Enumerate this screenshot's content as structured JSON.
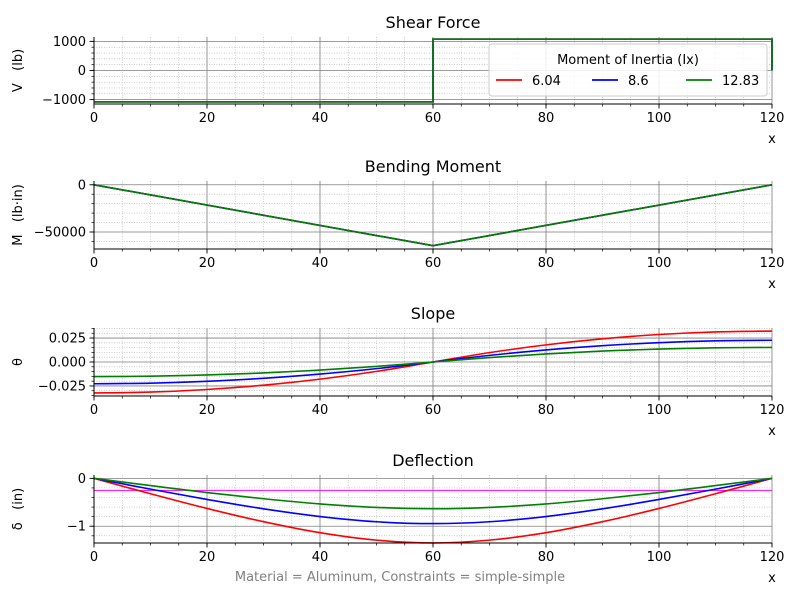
{
  "footer_text": "Material = Aluminum, Constraints = simple-simple",
  "legend": {
    "title": "Moment of Inertia (Ix)",
    "placement": "top-right (Shear Force panel)",
    "entries": [
      {
        "label": "6.04",
        "color": "#ff0000"
      },
      {
        "label": "8.6",
        "color": "#0000ff"
      },
      {
        "label": "12.83",
        "color": "#008000"
      }
    ]
  },
  "chart_data": [
    {
      "type": "line",
      "title": "Shear Force",
      "xlabel": "x",
      "ylabel": "V   (lb)",
      "xlim": [
        0,
        120
      ],
      "ylim": [
        -1150,
        1150
      ],
      "xticks": [
        0,
        20,
        40,
        60,
        80,
        100,
        120
      ],
      "xtick_labels": [
        "0",
        "20",
        "40",
        "60",
        "80",
        "100",
        "120"
      ],
      "yticks": [
        -1000,
        0,
        1000
      ],
      "ytick_labels": [
        "−1000",
        "0",
        "1000"
      ],
      "grid": true,
      "series": [
        {
          "name": "6.04",
          "color": "#ff0000",
          "x": [
            0,
            60,
            60,
            120,
            120
          ],
          "y": [
            -1075,
            -1075,
            1075,
            1075,
            0
          ]
        },
        {
          "name": "8.6",
          "color": "#0000ff",
          "x": [
            0,
            60,
            60,
            120,
            120
          ],
          "y": [
            -1075,
            -1075,
            1075,
            1075,
            0
          ]
        },
        {
          "name": "12.83",
          "color": "#008000",
          "x": [
            0,
            60,
            60,
            120,
            120
          ],
          "y": [
            -1075,
            -1075,
            1075,
            1075,
            0
          ]
        }
      ]
    },
    {
      "type": "line",
      "title": "Bending Moment",
      "xlabel": "x",
      "ylabel": "M   (lb·in)",
      "xlim": [
        0,
        120
      ],
      "ylim": [
        -68000,
        4000
      ],
      "xticks": [
        0,
        20,
        40,
        60,
        80,
        100,
        120
      ],
      "xtick_labels": [
        "0",
        "20",
        "40",
        "60",
        "80",
        "100",
        "120"
      ],
      "yticks": [
        -50000,
        0
      ],
      "ytick_labels": [
        "−50000",
        "0"
      ],
      "grid": true,
      "series": [
        {
          "name": "6.04",
          "color": "#ff0000",
          "x": [
            0,
            60,
            120
          ],
          "y": [
            0,
            -64500,
            0
          ]
        },
        {
          "name": "8.6",
          "color": "#0000ff",
          "x": [
            0,
            60,
            120
          ],
          "y": [
            0,
            -64500,
            0
          ]
        },
        {
          "name": "12.83",
          "color": "#008000",
          "x": [
            0,
            60,
            120
          ],
          "y": [
            0,
            -64500,
            0
          ]
        }
      ]
    },
    {
      "type": "line",
      "title": "Slope",
      "xlabel": "x",
      "ylabel": "θ",
      "xlim": [
        0,
        120
      ],
      "ylim": [
        -0.0355,
        0.0355
      ],
      "xticks": [
        0,
        20,
        40,
        60,
        80,
        100,
        120
      ],
      "xtick_labels": [
        "0",
        "20",
        "40",
        "60",
        "80",
        "100",
        "120"
      ],
      "yticks": [
        -0.025,
        0.0,
        0.025
      ],
      "ytick_labels": [
        "−0.025",
        "0.000",
        "0.025"
      ],
      "grid": true,
      "series": [
        {
          "name": "6.04",
          "color": "#ff0000",
          "x": [
            0,
            10,
            20,
            30,
            40,
            50,
            60,
            70,
            80,
            90,
            100,
            110,
            120
          ],
          "y": [
            -0.0323,
            -0.0314,
            -0.0287,
            -0.0242,
            -0.0179,
            -0.0098,
            0.0,
            0.0098,
            0.0179,
            0.0242,
            0.0287,
            0.0314,
            0.0323
          ]
        },
        {
          "name": "8.6",
          "color": "#0000ff",
          "x": [
            0,
            10,
            20,
            30,
            40,
            50,
            60,
            70,
            80,
            90,
            100,
            110,
            120
          ],
          "y": [
            -0.0227,
            -0.0221,
            -0.0202,
            -0.017,
            -0.0126,
            -0.0069,
            0.0,
            0.0069,
            0.0126,
            0.017,
            0.0202,
            0.0221,
            0.0227
          ]
        },
        {
          "name": "12.83",
          "color": "#008000",
          "x": [
            0,
            10,
            20,
            30,
            40,
            50,
            60,
            70,
            80,
            90,
            100,
            110,
            120
          ],
          "y": [
            -0.0152,
            -0.0148,
            -0.0135,
            -0.0114,
            -0.0084,
            -0.0046,
            0.0,
            0.0046,
            0.0084,
            0.0114,
            0.0135,
            0.0148,
            0.0152
          ]
        }
      ]
    },
    {
      "type": "line",
      "title": "Deflection",
      "xlabel": "x",
      "ylabel": "δ   (in)",
      "xlim": [
        0,
        120
      ],
      "ylim": [
        -1.35,
        0.07
      ],
      "xticks": [
        0,
        20,
        40,
        60,
        80,
        100,
        120
      ],
      "xtick_labels": [
        "0",
        "20",
        "40",
        "60",
        "80",
        "100",
        "120"
      ],
      "yticks": [
        -1,
        0
      ],
      "ytick_labels": [
        "−1",
        "0"
      ],
      "grid": true,
      "hline": {
        "y": -0.25,
        "color": "#ff00ff"
      },
      "series": [
        {
          "name": "6.04",
          "color": "#ff0000",
          "x": [
            0,
            10,
            20,
            30,
            40,
            50,
            60,
            70,
            80,
            90,
            100,
            110,
            120
          ],
          "y": [
            0,
            -0.321,
            -0.628,
            -0.905,
            -1.135,
            -1.29,
            -1.348,
            -1.29,
            -1.135,
            -0.905,
            -0.628,
            -0.321,
            0
          ]
        },
        {
          "name": "8.6",
          "color": "#0000ff",
          "x": [
            0,
            10,
            20,
            30,
            40,
            50,
            60,
            70,
            80,
            90,
            100,
            110,
            120
          ],
          "y": [
            0,
            -0.225,
            -0.441,
            -0.636,
            -0.797,
            -0.906,
            -0.945,
            -0.906,
            -0.797,
            -0.636,
            -0.441,
            -0.225,
            0
          ]
        },
        {
          "name": "12.83",
          "color": "#008000",
          "x": [
            0,
            10,
            20,
            30,
            40,
            50,
            60,
            70,
            80,
            90,
            100,
            110,
            120
          ],
          "y": [
            0,
            -0.151,
            -0.296,
            -0.426,
            -0.534,
            -0.607,
            -0.634,
            -0.607,
            -0.534,
            -0.426,
            -0.296,
            -0.151,
            0
          ]
        }
      ]
    }
  ]
}
